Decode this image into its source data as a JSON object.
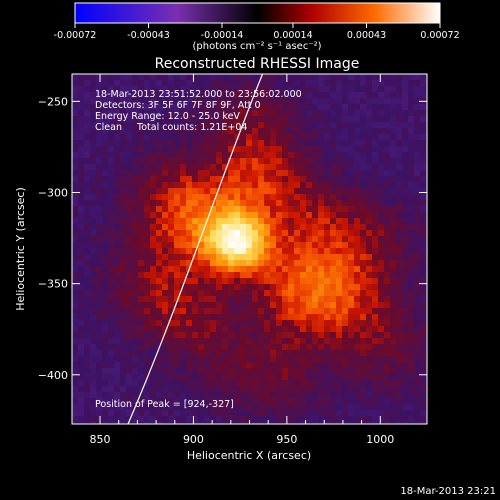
{
  "chart_data": {
    "type": "heatmap",
    "title": "Reconstructed RHESSI Image",
    "xlabel": "Heliocentric X (arcsec)",
    "ylabel": "Heliocentric Y (arcsec)",
    "xlim": [
      835,
      1025
    ],
    "ylim": [
      -427,
      -235
    ],
    "x_ticks": [
      850,
      900,
      950,
      1000
    ],
    "y_ticks": [
      -250,
      -300,
      -350,
      -400
    ],
    "colorbar": {
      "range": [
        -0.00072,
        0.00072
      ],
      "tick_values": [
        -0.00072,
        -0.00043,
        -0.00014,
        0.00014,
        0.00043,
        0.00072
      ],
      "tick_labels": [
        "-0.00072",
        "-0.00043",
        "-0.00014",
        "0.00014",
        "0.00043",
        "0.00072"
      ],
      "unit_label": "(photons cm⁻² s⁻¹ asec⁻²)",
      "colors": [
        "#0000ff",
        "#7a2fb0",
        "#000000",
        "#b00000",
        "#ff6a00",
        "#ffffff"
      ]
    },
    "annotations": [
      "18-Mar-2013 23:51:52.000 to 23:56:02.000",
      "Detectors: 3F 5F 6F 7F 8F 9F, Att 0",
      "Energy Range: 12.0 - 25.0 keV",
      "Clean     Total counts: 1.21E+04"
    ],
    "peak": {
      "label": "Position of Peak = [924,-327]",
      "x": 924,
      "y": -327
    },
    "sources": [
      {
        "x": 924,
        "y": -327,
        "amplitude": 0.00072
      },
      {
        "x": 905,
        "y": -318,
        "amplitude": 0.00032
      },
      {
        "x": 935,
        "y": -292,
        "amplitude": 0.00026
      },
      {
        "x": 955,
        "y": -352,
        "amplitude": 0.0003
      },
      {
        "x": 980,
        "y": -360,
        "amplitude": 0.00022
      },
      {
        "x": 995,
        "y": -330,
        "amplitude": 0.00018
      },
      {
        "x": 895,
        "y": -365,
        "amplitude": 0.00022
      },
      {
        "x": 885,
        "y": -300,
        "amplitude": 0.00018
      },
      {
        "x": 965,
        "y": -315,
        "amplitude": 0.0002
      },
      {
        "x": 1005,
        "y": -385,
        "amplitude": 0.00016
      },
      {
        "x": 950,
        "y": -400,
        "amplitude": 0.00014
      },
      {
        "x": 870,
        "y": -345,
        "amplitude": 0.00014
      },
      {
        "x": 930,
        "y": -260,
        "amplitude": 0.00016
      },
      {
        "x": 920,
        "y": -395,
        "amplitude": 0.00012
      }
    ],
    "limb_curve": [
      [
        865,
        -427
      ],
      [
        895,
        -355
      ],
      [
        915,
        -290
      ],
      [
        937,
        -235
      ]
    ],
    "footer_date": "18-Mar-2013 23:21"
  }
}
